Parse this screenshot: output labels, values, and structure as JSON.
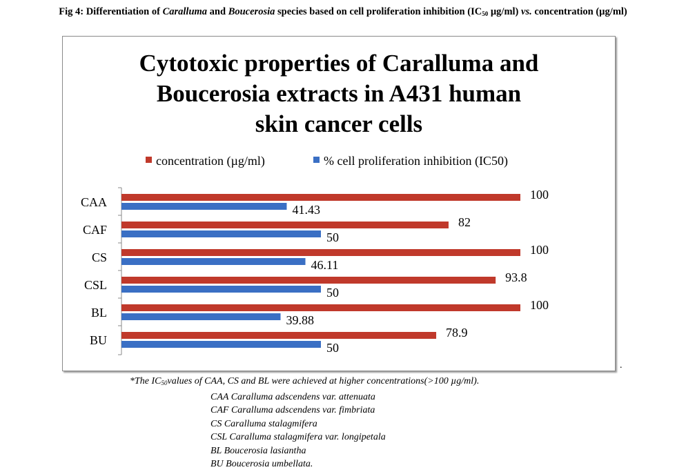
{
  "figure_caption": {
    "prefix": "Fig 4: Differentiation of ",
    "genus1": "Caralluma",
    "mid": " and ",
    "genus2": "Boucerosia",
    "rest1": " species based on   cell proliferation inhibition (IC",
    "sub": "50",
    "rest2": " µg/ml) ",
    "vs": "vs.",
    "rest3": " concentration (µg/ml)"
  },
  "chart_data": {
    "type": "bar",
    "orientation": "horizontal",
    "title": [
      "Cytotoxic properties of Caralluma and",
      "Boucerosia extracts in A431 human",
      "skin cancer cells"
    ],
    "categories": [
      "CAA",
      "CAF",
      "CS",
      "CSL",
      "BL",
      "BU"
    ],
    "series": [
      {
        "name": "concentration (µg/ml)",
        "color": "#c0392b",
        "values": [
          100,
          82,
          100,
          93.8,
          100,
          78.9
        ],
        "labels": [
          "100",
          "82",
          "100",
          "93.8",
          "100",
          "78.9"
        ]
      },
      {
        "name": "% cell proliferation inhibition (IC50)",
        "color": "#3a6fc4",
        "values": [
          41.43,
          50,
          46.11,
          50,
          39.88,
          50
        ],
        "labels": [
          "41.43",
          "50",
          "46.11",
          "50",
          "39.88",
          "50"
        ]
      }
    ],
    "xlim": [
      0,
      100
    ],
    "legend": "top",
    "grid": false
  },
  "footnote": {
    "prefix": "*The IC",
    "sub": "50",
    "rest": "values of CAA, CS and BL were achieved at higher concentrations(>100 µg/ml)."
  },
  "abbreviations": [
    "CAA Caralluma adscendens var. attenuata",
    "CAF Caralluma adscendens var. fimbriata",
    "CS Caralluma stalagmifera",
    "CSL Caralluma stalagmifera var. longipetala",
    "BL Boucerosia lasiantha",
    "BU Boucerosia umbellata."
  ],
  "trailing_mark": "."
}
